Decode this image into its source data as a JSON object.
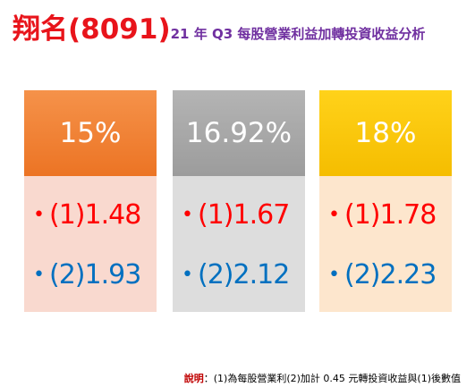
{
  "header": {
    "company": "翔名(8091)",
    "subtitle": "21 年 Q3 每股營業利益加轉投資收益分析"
  },
  "cards": [
    {
      "head": "15%",
      "line1": "(1)1.48",
      "line2": "(2)1.93",
      "head_color": "#ec7424"
    },
    {
      "head": "16.92%",
      "line1": "(1)1.67",
      "line2": "(2)2.12",
      "head_color": "#a6a6a6"
    },
    {
      "head": "18%",
      "line1": "(1)1.78",
      "line2": "(2)2.23",
      "head_color": "#ffc000"
    }
  ],
  "bullet": "•",
  "note": {
    "label": "說明",
    "text": "：(1)為每股營業利(2)加計 0.45 元轉投資收益與(1)後數值"
  },
  "colors": {
    "company": "#e8141b",
    "subtitle": "#7030a0",
    "line1": "#ff0000",
    "line2": "#0070c0"
  }
}
